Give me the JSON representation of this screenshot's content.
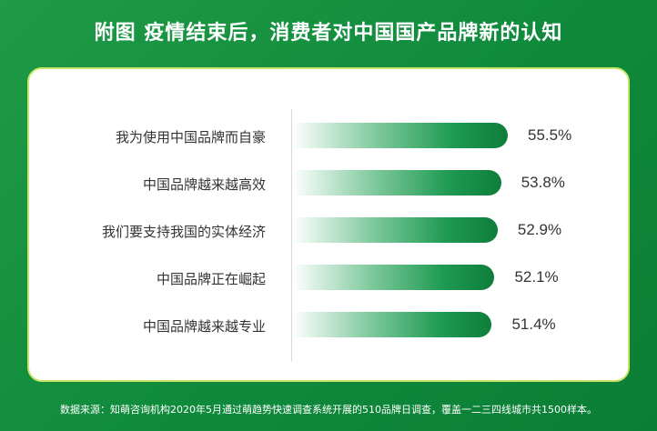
{
  "title": "附图  疫情结束后，消费者对中国国产品牌新的认知",
  "footer": "数据来源：知萌咨询机构2020年5月通过萌趋势快速调查系统开展的510品牌日调查，覆盖一二三四线城市共1500样本。",
  "colors": {
    "background": "#1a9645",
    "bar_dark": "#0e7e3a",
    "bar_light": "#7cc89a",
    "panel_border": "#c8e56a"
  },
  "chart_data": {
    "type": "bar",
    "orientation": "horizontal",
    "categories": [
      "我为使用中国品牌而自豪",
      "中国品牌越来越高效",
      "我们要支持我国的实体经济",
      "中国品牌正在崛起",
      "中国品牌越来越专业"
    ],
    "values": [
      55.5,
      53.8,
      52.9,
      52.1,
      51.4
    ],
    "value_labels": [
      "55.5%",
      "53.8%",
      "52.9%",
      "52.1%",
      "51.4%"
    ],
    "unit": "%",
    "grid": false,
    "legend": "none"
  }
}
